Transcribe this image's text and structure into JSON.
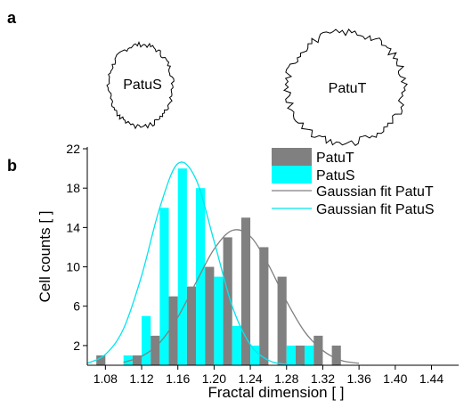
{
  "panel_a": {
    "label": "a",
    "cells": [
      "PatuS",
      "PatuT"
    ]
  },
  "chart_data": {
    "type": "histogram",
    "panel_label": "b",
    "xlabel": "Fractal dimension [ ]",
    "ylabel": "Cell counts [ ]",
    "bins": [
      1.06,
      1.08,
      1.1,
      1.12,
      1.14,
      1.16,
      1.18,
      1.2,
      1.22,
      1.24,
      1.26,
      1.28,
      1.3,
      1.32,
      1.34
    ],
    "series": [
      {
        "name": "PatuT",
        "color": "#808080",
        "values": [
          1,
          0,
          1,
          3,
          7,
          8,
          10,
          13,
          15,
          12,
          9,
          2,
          3,
          2
        ]
      },
      {
        "name": "PatuS",
        "color": "#00ffff",
        "values": [
          0,
          0,
          1,
          5,
          16,
          20,
          18,
          9,
          4,
          2,
          0,
          2,
          2,
          0
        ]
      }
    ],
    "fits": [
      {
        "name": "Gaussian fit PatuT",
        "color": "#808080",
        "x": [
          1.1,
          1.12,
          1.14,
          1.16,
          1.18,
          1.2,
          1.22,
          1.24,
          1.26,
          1.28,
          1.3,
          1.32,
          1.34,
          1.36
        ],
        "values": [
          0.3,
          0.9,
          2.3,
          4.9,
          8.4,
          11.8,
          13.7,
          13.1,
          10.2,
          6.5,
          3.4,
          1.5,
          0.5,
          0.2
        ]
      },
      {
        "name": "Gaussian fit PatuS",
        "color": "#00e5ee",
        "x": [
          1.06,
          1.08,
          1.1,
          1.12,
          1.14,
          1.16,
          1.18,
          1.2,
          1.22,
          1.24,
          1.26,
          1.28,
          1.3
        ],
        "values": [
          0.2,
          1.1,
          3.7,
          9.1,
          16.0,
          20.5,
          18.9,
          12.6,
          6.0,
          2.1,
          0.5,
          0.1,
          0
        ]
      }
    ],
    "xlim": [
      1.06,
      1.47
    ],
    "ylim": [
      0,
      22
    ],
    "xticks": [
      1.08,
      1.12,
      1.16,
      {
        "value": 1.2,
        "label": "1.20"
      },
      1.24,
      1.28,
      1.32,
      1.36,
      {
        "value": 1.4,
        "label": "1.40"
      },
      1.44
    ],
    "yticks": [
      2,
      6,
      10,
      14,
      18,
      22
    ],
    "legend": "upper right"
  }
}
